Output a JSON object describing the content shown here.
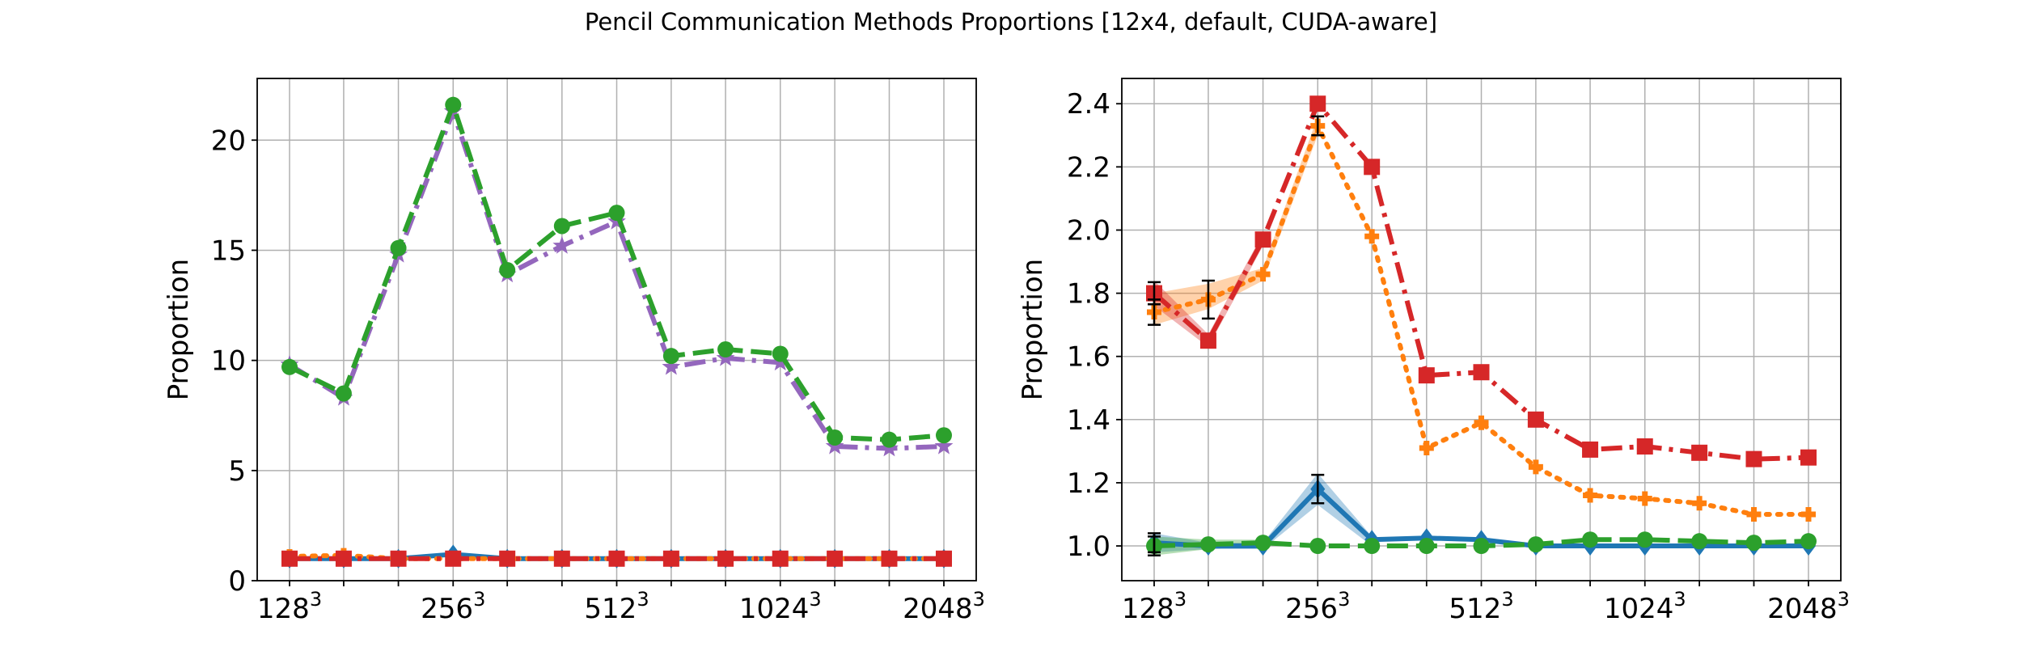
{
  "title": "Pencil Communication Methods Proportions [12x4, default, CUDA-aware]",
  "colors": {
    "blue": "#1f77b4",
    "orange": "#ff7f0e",
    "green": "#2ca02c",
    "red": "#d62728",
    "purple": "#9467bd",
    "grid": "#b0b0b0"
  },
  "chart_data": [
    {
      "type": "line",
      "ylabel": "Proportion",
      "x": [
        128,
        161,
        203,
        256,
        322,
        406,
        512,
        645,
        812,
        1024,
        1290,
        1625,
        2048
      ],
      "xticks": [
        {
          "value": 128,
          "base": "128",
          "exp": "3"
        },
        {
          "value": 256,
          "base": "256",
          "exp": "3"
        },
        {
          "value": 512,
          "base": "512",
          "exp": "3"
        },
        {
          "value": 1024,
          "base": "1024",
          "exp": "3"
        },
        {
          "value": 2048,
          "base": "2048",
          "exp": "3"
        }
      ],
      "xscale": "log2",
      "ylim": [
        0,
        22.8
      ],
      "yticks": [
        0,
        5,
        10,
        15,
        20
      ],
      "grid": true,
      "series": [
        {
          "color": "#1f77b4",
          "dash": "solid",
          "marker": "diamond",
          "values": [
            1.0,
            1.0,
            1.0,
            1.2,
            1.0,
            1.0,
            1.0,
            1.0,
            1.0,
            1.0,
            1.0,
            1.0,
            1.0
          ]
        },
        {
          "color": "#ff7f0e",
          "dash": "dotted",
          "marker": "plus",
          "values": [
            1.1,
            1.15,
            1.0,
            1.0,
            1.0,
            1.0,
            1.0,
            1.0,
            1.0,
            1.0,
            1.0,
            1.0,
            1.0
          ]
        },
        {
          "color": "#9467bd",
          "dash": "dashdot",
          "marker": "star",
          "values": [
            9.8,
            8.3,
            14.8,
            21.3,
            13.9,
            15.2,
            16.3,
            9.7,
            10.1,
            9.9,
            6.1,
            6.0,
            6.1
          ]
        },
        {
          "color": "#2ca02c",
          "dash": "dashed",
          "marker": "circle",
          "values": [
            9.7,
            8.5,
            15.1,
            21.6,
            14.1,
            16.1,
            16.7,
            10.2,
            10.5,
            10.3,
            6.5,
            6.4,
            6.6
          ]
        },
        {
          "color": "#d62728",
          "dash": "dashdot",
          "marker": "square",
          "values": [
            1.0,
            1.0,
            1.0,
            1.0,
            1.0,
            1.0,
            1.0,
            1.0,
            1.0,
            1.0,
            1.0,
            1.0,
            1.0
          ]
        }
      ]
    },
    {
      "type": "line",
      "ylabel": "Proportion",
      "x": [
        128,
        161,
        203,
        256,
        322,
        406,
        512,
        645,
        812,
        1024,
        1290,
        1625,
        2048
      ],
      "xticks": [
        {
          "value": 128,
          "base": "128",
          "exp": "3"
        },
        {
          "value": 256,
          "base": "256",
          "exp": "3"
        },
        {
          "value": 512,
          "base": "512",
          "exp": "3"
        },
        {
          "value": 1024,
          "base": "1024",
          "exp": "3"
        },
        {
          "value": 2048,
          "base": "2048",
          "exp": "3"
        }
      ],
      "xscale": "log2",
      "ylim": [
        0.89,
        2.48
      ],
      "yticks": [
        1.0,
        1.2,
        1.4,
        1.6,
        1.8,
        2.0,
        2.2,
        2.4
      ],
      "grid": true,
      "series": [
        {
          "color": "#1f77b4",
          "dash": "solid",
          "marker": "diamond",
          "values": [
            1.01,
            1.0,
            1.0,
            1.18,
            1.02,
            1.025,
            1.02,
            1.0,
            1.0,
            1.0,
            1.0,
            1.0,
            1.0
          ],
          "band": [
            [
              0.98,
              1.04
            ],
            [
              0.99,
              1.01
            ],
            [
              0.99,
              1.01
            ],
            [
              1.13,
              1.23
            ],
            [
              1.0,
              1.03
            ],
            null,
            null,
            null,
            null,
            null,
            null,
            null,
            null
          ],
          "errors": [
            0.03,
            0,
            0,
            0.045,
            0,
            0,
            0,
            0,
            0,
            0,
            0,
            0,
            0
          ]
        },
        {
          "color": "#ff7f0e",
          "dash": "dotted",
          "marker": "plus",
          "values": [
            1.74,
            1.78,
            1.86,
            2.33,
            1.98,
            1.31,
            1.39,
            1.25,
            1.16,
            1.15,
            1.135,
            1.1,
            1.1
          ],
          "band": [
            [
              1.7,
              1.8
            ],
            [
              1.75,
              1.83
            ],
            [
              1.84,
              1.88
            ],
            [
              2.3,
              2.36
            ],
            null,
            null,
            null,
            null,
            null,
            null,
            null,
            null,
            null
          ],
          "errors": [
            0.04,
            0.06,
            0,
            0.03,
            0,
            0,
            0,
            0,
            0,
            0,
            0,
            0,
            0
          ]
        },
        {
          "color": "#2ca02c",
          "dash": "dashed",
          "marker": "circle",
          "values": [
            1.0,
            1.005,
            1.01,
            1.0,
            1.0,
            1.0,
            1.0,
            1.005,
            1.02,
            1.02,
            1.015,
            1.01,
            1.015
          ],
          "band": [
            [
              0.97,
              1.03
            ],
            [
              0.99,
              1.02
            ],
            [
              1.0,
              1.02
            ],
            null,
            null,
            null,
            null,
            null,
            null,
            null,
            null,
            null,
            null
          ],
          "errors": [
            0.03,
            0,
            0,
            0,
            0,
            0,
            0,
            0,
            0,
            0,
            0,
            0,
            0
          ]
        },
        {
          "color": "#d62728",
          "dash": "dashdot",
          "marker": "square",
          "values": [
            1.8,
            1.65,
            1.97,
            2.4,
            2.2,
            1.54,
            1.55,
            1.4,
            1.305,
            1.315,
            1.295,
            1.275,
            1.28
          ],
          "band": [
            [
              1.76,
              1.84
            ],
            [
              1.63,
              1.67
            ],
            [
              1.95,
              1.99
            ],
            null,
            [
              2.18,
              2.22
            ],
            null,
            null,
            null,
            null,
            null,
            null,
            null,
            null
          ],
          "errors": [
            0.035,
            0,
            0,
            0,
            0,
            0,
            0,
            0,
            0,
            0,
            0,
            0,
            0
          ]
        }
      ]
    }
  ]
}
